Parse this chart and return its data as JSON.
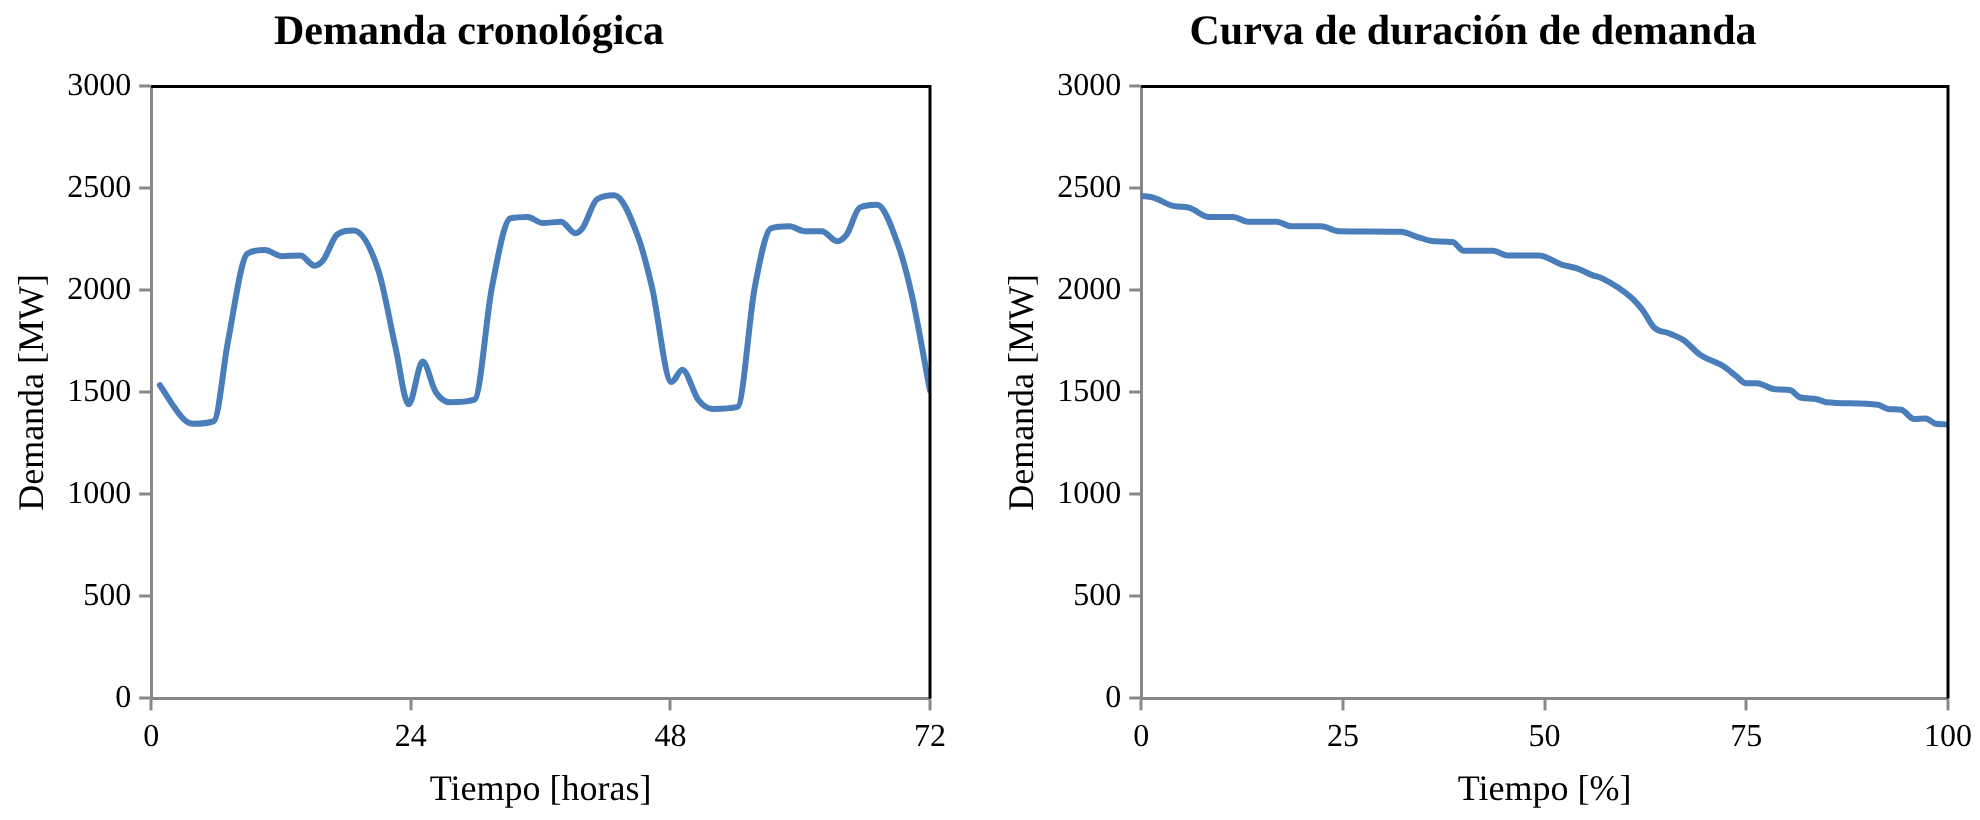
{
  "chart_data": [
    {
      "type": "line",
      "title": "Demanda cronológica",
      "xlabel": "Tiempo [horas]",
      "ylabel": "Demanda [MW]",
      "xlim": [
        0,
        72
      ],
      "xticks": [
        0,
        24,
        48,
        72
      ],
      "ylim": [
        0,
        3000
      ],
      "yticks": [
        0,
        500,
        1000,
        1500,
        2000,
        2500,
        3000
      ],
      "grid": false,
      "legend": false,
      "marker": "none",
      "line_style": "solid",
      "series": [
        {
          "color": "#4a7ebb",
          "x": [
            0.8,
            3.0,
            3.9,
            5.8,
            7.1,
            8.9,
            10.5,
            12.1,
            13.8,
            15.1,
            15.9,
            17.2,
            18.7,
            21.0,
            22.6,
            23.8,
            25.1,
            26.3,
            27.6,
            29.9,
            31.5,
            33.2,
            34.8,
            36.2,
            37.9,
            39.2,
            39.9,
            41.2,
            42.8,
            45.0,
            46.3,
            48.1,
            49.1,
            50.6,
            51.9,
            54.2,
            55.8,
            57.3,
            59.0,
            60.4,
            62.0,
            63.4,
            64.3,
            65.5,
            67.1,
            69.0,
            70.3,
            72
          ],
          "values": [
            1535,
            1369,
            1346,
            1359,
            1750,
            2181,
            2198,
            2168,
            2171,
            2121,
            2148,
            2274,
            2294,
            2098,
            1717,
            1442,
            1651,
            1502,
            1452,
            1465,
            2015,
            2353,
            2360,
            2330,
            2337,
            2280,
            2307,
            2446,
            2466,
            2264,
            2015,
            1551,
            1611,
            1462,
            1419,
            1429,
            2015,
            2304,
            2314,
            2290,
            2290,
            2241,
            2274,
            2406,
            2420,
            2231,
            1982,
            1508
          ]
        }
      ]
    },
    {
      "type": "line",
      "title": "Curva de duración de demanda",
      "xlabel": "Tiempo [%]",
      "ylabel": "Demanda [MW]",
      "xlim": [
        0,
        100
      ],
      "xticks": [
        0,
        25,
        50,
        75,
        100
      ],
      "ylim": [
        0,
        3000
      ],
      "yticks": [
        0,
        500,
        1000,
        1500,
        2000,
        2500,
        3000
      ],
      "grid": false,
      "legend": false,
      "marker": "none",
      "line_style": "solid",
      "series": [
        {
          "color": "#4a7ebb",
          "x": [
            0,
            1.4,
            4.1,
            5.9,
            8.4,
            11.4,
            13.2,
            16.8,
            18.6,
            22.3,
            24.5,
            32.2,
            34.1,
            36.3,
            38.6,
            40.0,
            43.6,
            45.4,
            49.3,
            52.2,
            54.0,
            55.9,
            57.2,
            60.7,
            62.2,
            63.6,
            65.4,
            67.2,
            69.3,
            72.2,
            73.8,
            74.9,
            76.3,
            78.6,
            80.4,
            81.7,
            83.6,
            84.9,
            91.3,
            92.6,
            94.2,
            95.8,
            97.2,
            98.5,
            100
          ],
          "values": [
            2463,
            2456,
            2413,
            2406,
            2360,
            2360,
            2337,
            2337,
            2314,
            2314,
            2290,
            2287,
            2264,
            2241,
            2237,
            2194,
            2194,
            2171,
            2171,
            2125,
            2108,
            2075,
            2058,
            1966,
            1900,
            1817,
            1790,
            1757,
            1684,
            1627,
            1578,
            1545,
            1545,
            1515,
            1512,
            1475,
            1468,
            1452,
            1439,
            1419,
            1415,
            1369,
            1372,
            1346,
            1343
          ]
        }
      ]
    }
  ]
}
